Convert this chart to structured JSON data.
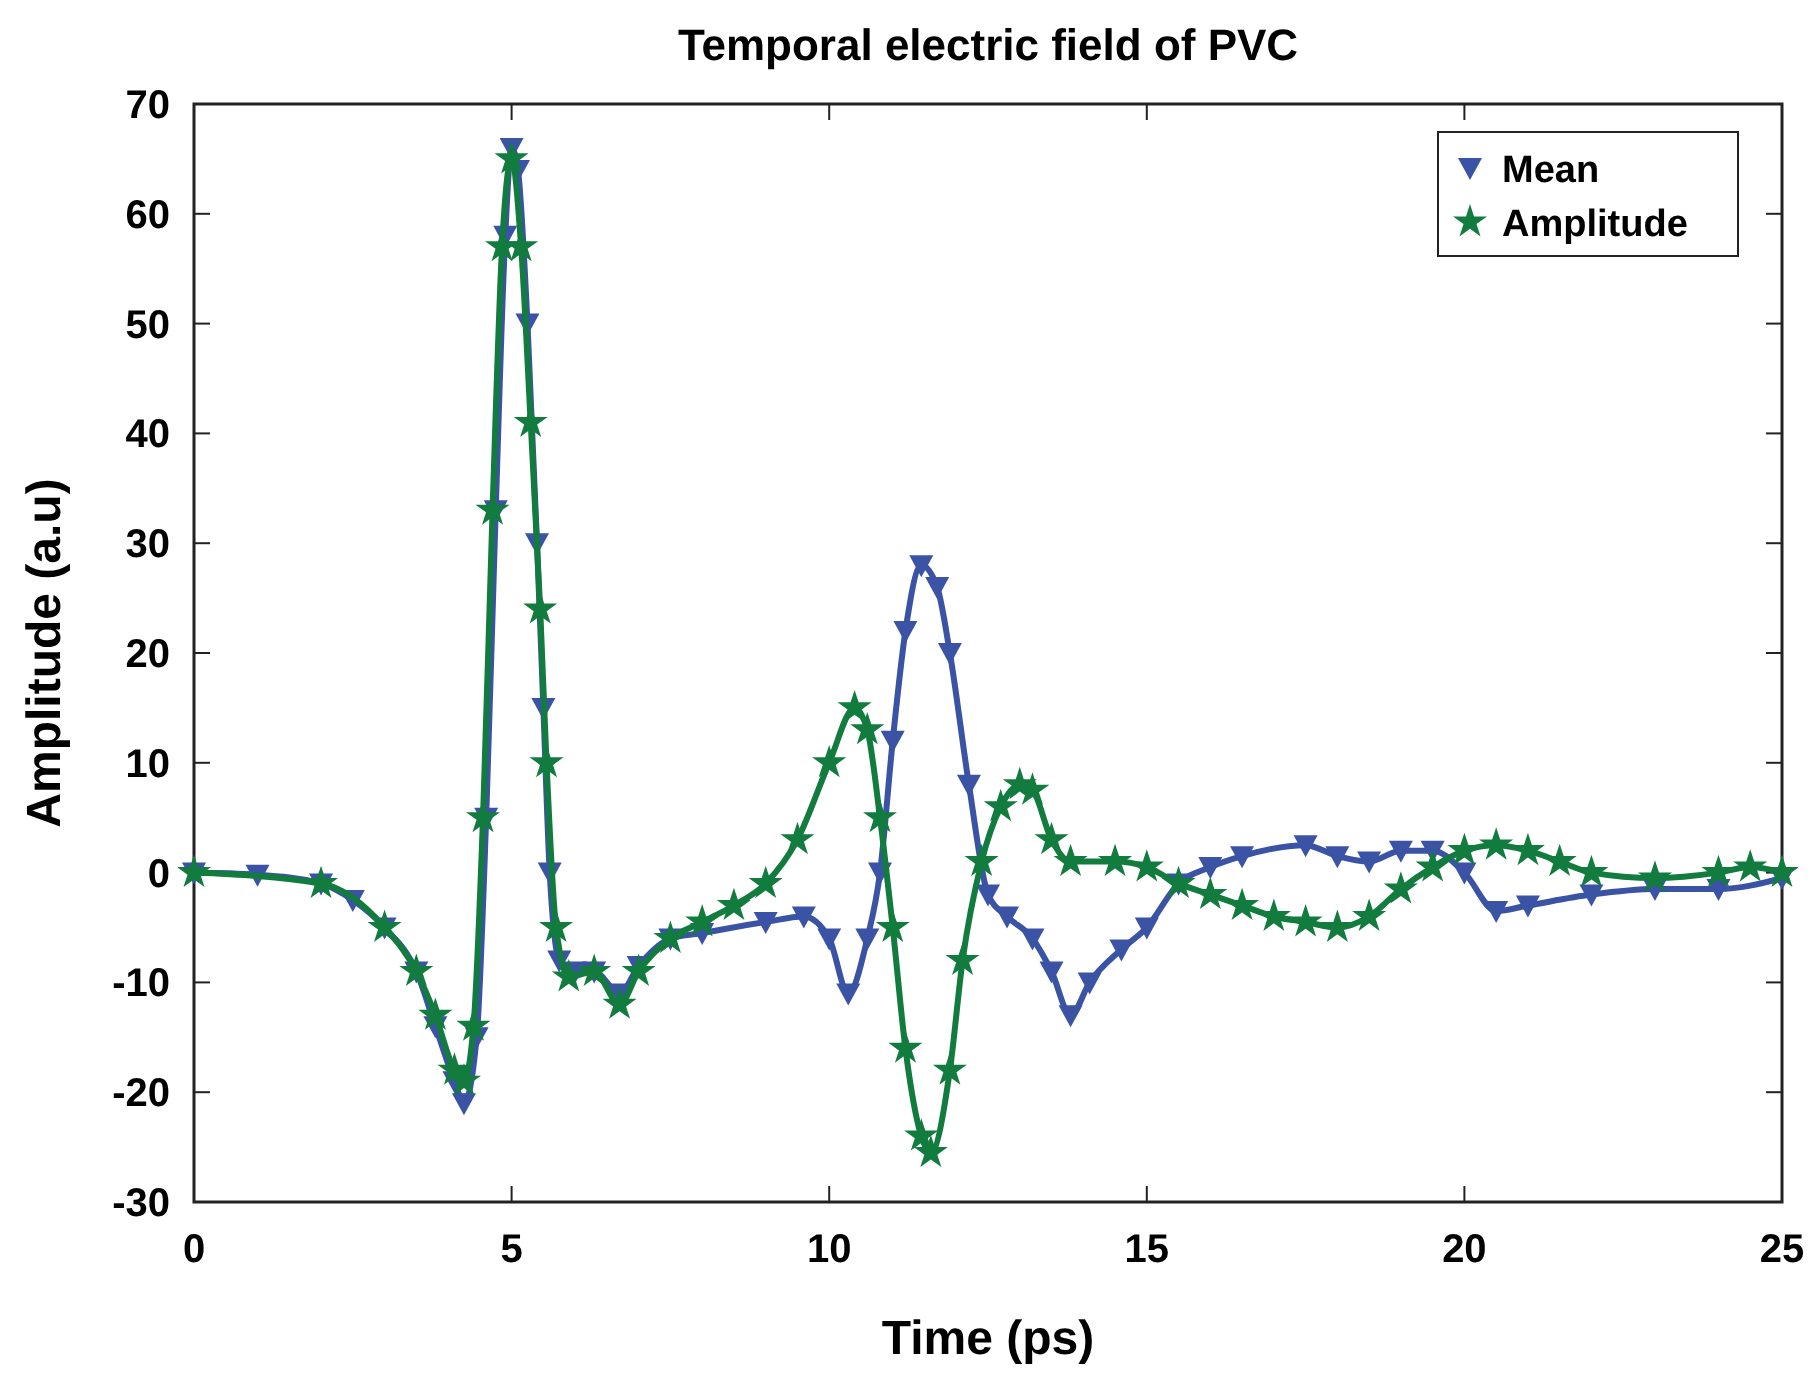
{
  "chart_data": {
    "type": "line",
    "title": "Temporal electric field of PVC",
    "xlabel": "Time (ps)",
    "ylabel": "Amplitude (a.u)",
    "xlim": [
      0,
      25
    ],
    "xticks": [
      0,
      5,
      10,
      15,
      20,
      25
    ],
    "ylim": [
      -30,
      70
    ],
    "yticks": [
      -30,
      -20,
      -10,
      0,
      10,
      20,
      30,
      40,
      50,
      60,
      70
    ],
    "grid": false,
    "legend": "top right",
    "series": [
      {
        "name": "Mean",
        "color": "#3a53a4",
        "marker": "triangle",
        "x": [
          0,
          1,
          2,
          2.5,
          3,
          3.5,
          3.8,
          4.1,
          4.25,
          4.45,
          4.6,
          4.75,
          4.9,
          5.0,
          5.1,
          5.25,
          5.4,
          5.5,
          5.6,
          5.75,
          6.0,
          6.3,
          6.7,
          7.0,
          7.5,
          8,
          9,
          9.6,
          10.0,
          10.3,
          10.6,
          10.8,
          11.0,
          11.2,
          11.45,
          11.7,
          11.9,
          12.2,
          12.5,
          12.8,
          13.2,
          13.5,
          13.8,
          14.1,
          14.6,
          15,
          15.5,
          16,
          16.5,
          17.5,
          18,
          18.5,
          19,
          19.5,
          20,
          20.5,
          21,
          22,
          23,
          24,
          25
        ],
        "values": [
          0,
          -0.2,
          -1,
          -2.5,
          -5,
          -9,
          -14,
          -19,
          -21,
          -15,
          5,
          33,
          58,
          66,
          64,
          50,
          30,
          15,
          0,
          -8,
          -9,
          -9,
          -11,
          -8.5,
          -6,
          -5.5,
          -4.5,
          -4,
          -6,
          -11,
          -6,
          0,
          12,
          22,
          28,
          26,
          20,
          8,
          -2,
          -4,
          -6,
          -9,
          -13,
          -10,
          -7,
          -5,
          -1,
          0.5,
          1.5,
          2.5,
          1.5,
          1,
          2,
          2,
          0,
          -3.5,
          -3,
          -2,
          -1.5,
          -1.5,
          -0.5
        ]
      },
      {
        "name": "Amplitude",
        "color": "#127c3f",
        "marker": "star",
        "x": [
          0,
          2,
          3,
          3.5,
          3.8,
          4.1,
          4.25,
          4.4,
          4.55,
          4.7,
          4.85,
          5.0,
          5.15,
          5.3,
          5.45,
          5.55,
          5.7,
          5.9,
          6.3,
          6.7,
          7.0,
          7.5,
          8,
          8.5,
          9,
          9.5,
          10,
          10.4,
          10.6,
          10.8,
          11.0,
          11.2,
          11.45,
          11.6,
          11.9,
          12.1,
          12.4,
          12.7,
          13.0,
          13.2,
          13.5,
          13.8,
          14.5,
          15,
          15.5,
          16,
          16.5,
          17,
          17.5,
          18,
          18.5,
          19,
          19.5,
          20,
          20.5,
          21,
          21.5,
          22,
          23,
          24,
          24.5,
          25
        ],
        "values": [
          0,
          -1,
          -5,
          -9,
          -13,
          -18,
          -19,
          -14,
          5,
          33,
          57,
          65,
          57,
          41,
          24,
          10,
          -5,
          -9.5,
          -9,
          -12,
          -9,
          -6,
          -4.5,
          -3,
          -1,
          3,
          10,
          15,
          13,
          5,
          -5,
          -16,
          -24,
          -25.5,
          -18,
          -8,
          1,
          6,
          8,
          7.5,
          3,
          1,
          1,
          0.5,
          -1,
          -2,
          -3,
          -4,
          -4.5,
          -5,
          -4,
          -1.5,
          0.5,
          2,
          2.5,
          2,
          1,
          0,
          -0.5,
          0,
          0.5,
          0
        ]
      }
    ]
  }
}
